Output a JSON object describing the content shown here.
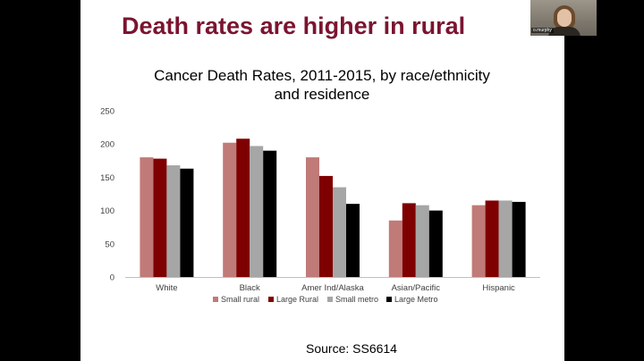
{
  "slide": {
    "title": "Death rates are higher in rural",
    "source": "Source:  SS6614"
  },
  "webcam": {
    "name_label": "o.murphy"
  },
  "colors": {
    "title": "#7b1430",
    "small_rural": "#c07a78",
    "large_rural": "#7f0000",
    "small_metro": "#a6a6a6",
    "large_metro": "#000000",
    "axis": "#bfbfbf",
    "text": "#404040"
  },
  "chart_data": {
    "type": "bar",
    "title_lines": [
      "Cancer Death Rates, 2011-2015, by race/ethnicity",
      "and residence"
    ],
    "categories": [
      "White",
      "Black",
      "Amer Ind/Alaska",
      "Asian/Pacific",
      "Hispanic"
    ],
    "series": [
      {
        "name": "Small rural",
        "color": "#c07a78",
        "values": [
          180,
          202,
          180,
          85,
          108
        ]
      },
      {
        "name": "Large Rural",
        "color": "#7f0000",
        "values": [
          178,
          208,
          152,
          111,
          115
        ]
      },
      {
        "name": "Small metro",
        "color": "#a6a6a6",
        "values": [
          168,
          197,
          135,
          108,
          115
        ]
      },
      {
        "name": "Large Metro",
        "color": "#000000",
        "values": [
          163,
          190,
          110,
          100,
          113
        ]
      }
    ],
    "ylim": [
      0,
      250
    ],
    "yticks": [
      0,
      50,
      100,
      150,
      200,
      250
    ],
    "xlabel": "",
    "ylabel": "",
    "grid": false,
    "legend_position": "bottom"
  }
}
